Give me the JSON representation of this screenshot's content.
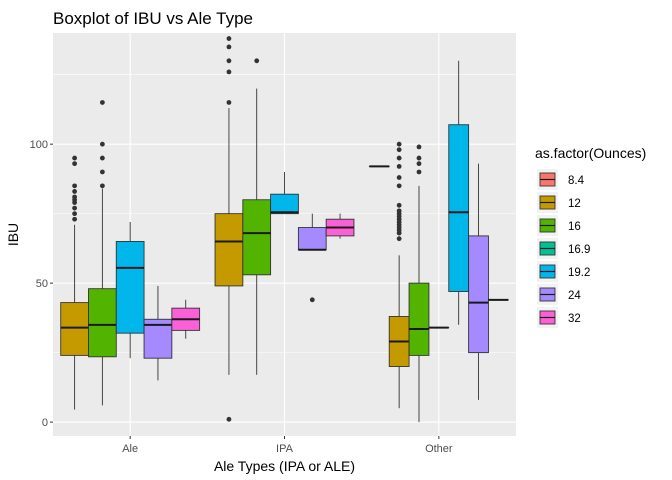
{
  "chart_data": {
    "type": "boxplot",
    "title": "Boxplot of IBU vs Ale Type",
    "xlabel": "Ale Types (IPA or ALE)",
    "ylabel": "IBU",
    "categories": [
      "Ale",
      "IPA",
      "Other"
    ],
    "ylim": [
      -5,
      140
    ],
    "yticks": [
      0,
      50,
      100
    ],
    "grid": true,
    "legend": {
      "title": "as.factor(Ounces)",
      "position": "right",
      "entries": [
        {
          "label": "8.4",
          "color": "#F8766D"
        },
        {
          "label": "12",
          "color": "#C49A00"
        },
        {
          "label": "16",
          "color": "#53B400"
        },
        {
          "label": "16.9",
          "color": "#00C094"
        },
        {
          "label": "19.2",
          "color": "#00B6EB"
        },
        {
          "label": "24",
          "color": "#A58AFF"
        },
        {
          "label": "32",
          "color": "#FB61D7"
        }
      ]
    },
    "groups": [
      {
        "category": "Ale",
        "boxes": [
          {
            "ounces": "12",
            "color": "#C49A00",
            "min": 4.5,
            "q1": 24,
            "median": 34,
            "q3": 43,
            "max": 71,
            "outliers": [
              73,
              75,
              77,
              79,
              80,
              81,
              83,
              85,
              93,
              95
            ]
          },
          {
            "ounces": "16",
            "color": "#53B400",
            "min": 6,
            "q1": 23.5,
            "median": 35,
            "q3": 48,
            "max": 84,
            "outliers": [
              85,
              90,
              95,
              100,
              115
            ]
          },
          {
            "ounces": "19.2",
            "color": "#00B6EB",
            "min": 23,
            "q1": 32,
            "median": 55.5,
            "q3": 65,
            "max": 72,
            "outliers": []
          },
          {
            "ounces": "24",
            "color": "#A58AFF",
            "min": 15,
            "q1": 23,
            "median": 35,
            "q3": 37,
            "max": 49,
            "outliers": []
          },
          {
            "ounces": "32",
            "color": "#FB61D7",
            "min": 30,
            "q1": 33,
            "median": 37,
            "q3": 41,
            "max": 44,
            "outliers": []
          }
        ]
      },
      {
        "category": "IPA",
        "boxes": [
          {
            "ounces": "12",
            "color": "#C49A00",
            "min": 17,
            "q1": 49,
            "median": 65,
            "q3": 75,
            "max": 113,
            "outliers": [
              1,
              115,
              126,
              130,
              135,
              138
            ]
          },
          {
            "ounces": "16",
            "color": "#53B400",
            "min": 17,
            "q1": 53,
            "median": 68,
            "q3": 80,
            "max": 120,
            "outliers": [
              130
            ]
          },
          {
            "ounces": "19.2",
            "color": "#00B6EB",
            "min": 75,
            "q1": 75,
            "median": 75.5,
            "q3": 82,
            "max": 90,
            "outliers": []
          },
          {
            "ounces": "24",
            "color": "#A58AFF",
            "min": 62,
            "q1": 62,
            "median": 62,
            "q3": 70,
            "max": 75,
            "outliers": [
              44
            ]
          },
          {
            "ounces": "32",
            "color": "#FB61D7",
            "min": 66,
            "q1": 67,
            "median": 70,
            "q3": 73,
            "max": 75,
            "outliers": []
          }
        ]
      },
      {
        "category": "Other",
        "boxes": [
          {
            "ounces": "8.4",
            "color": "#F8766D",
            "min": 92,
            "q1": 92,
            "median": 92,
            "q3": 92,
            "max": 92,
            "outliers": []
          },
          {
            "ounces": "12",
            "color": "#C49A00",
            "min": 5,
            "q1": 20,
            "median": 29,
            "q3": 38,
            "max": 60,
            "outliers": [
              66,
              68,
              69,
              70,
              71,
              72,
              73,
              74,
              75,
              76,
              78,
              85,
              88,
              92,
              95,
              98,
              100
            ]
          },
          {
            "ounces": "16",
            "color": "#53B400",
            "min": 0,
            "q1": 24,
            "median": 33.5,
            "q3": 50,
            "max": 85,
            "outliers": [
              90,
              93,
              95,
              99
            ]
          },
          {
            "ounces": "16.9",
            "color": "#00C094",
            "min": 34,
            "q1": 34,
            "median": 34,
            "q3": 34,
            "max": 34,
            "outliers": []
          },
          {
            "ounces": "19.2",
            "color": "#00B6EB",
            "min": 35,
            "q1": 47,
            "median": 75.5,
            "q3": 107,
            "max": 130,
            "outliers": []
          },
          {
            "ounces": "24",
            "color": "#A58AFF",
            "min": 8,
            "q1": 25,
            "median": 43,
            "q3": 67,
            "max": 93,
            "outliers": []
          },
          {
            "ounces": "32",
            "color": "#FB61D7",
            "min": 44,
            "q1": 44,
            "median": 44,
            "q3": 44,
            "max": 44,
            "outliers": []
          }
        ]
      }
    ]
  }
}
